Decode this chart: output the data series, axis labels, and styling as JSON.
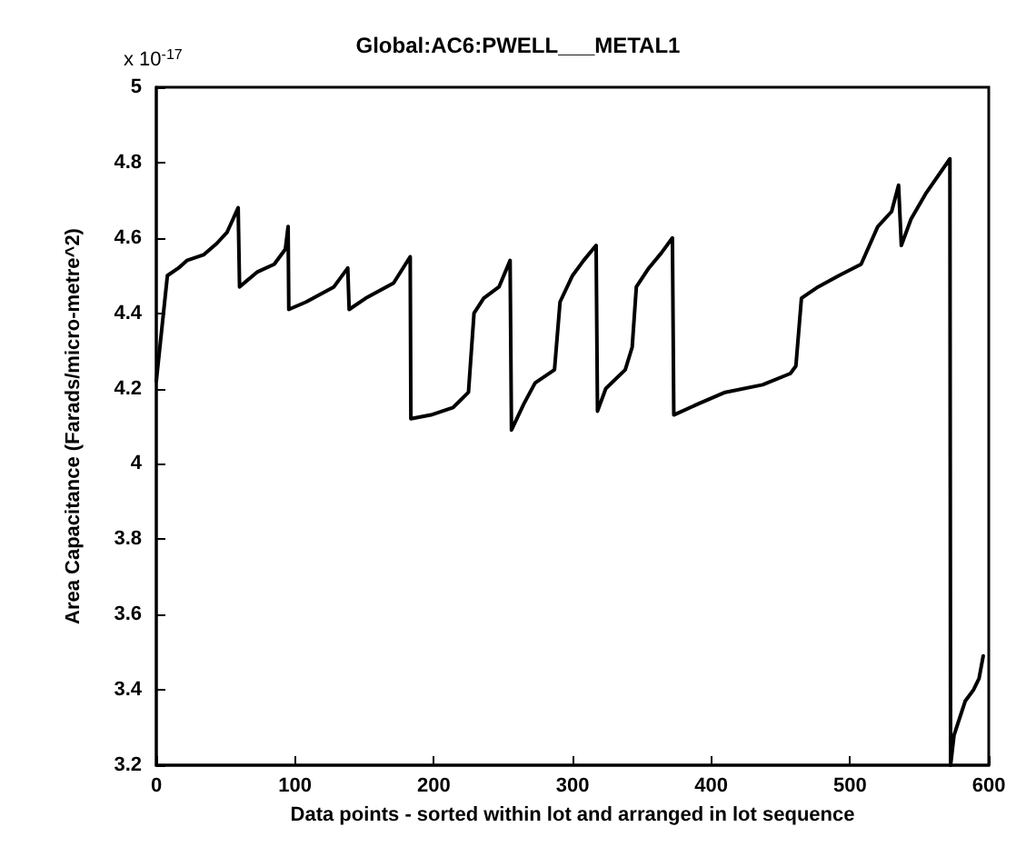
{
  "chart_data": {
    "type": "line",
    "title": "Global:AC6:PWELL___METAL1",
    "xlabel": "Data points - sorted within lot and arranged in lot sequence",
    "ylabel": "Area Capacitance (Farads/micro-metre^2)",
    "annotations": [
      "x 10$^{-17}$"
    ],
    "x": [
      0,
      8,
      16,
      22,
      34,
      43.5,
      51,
      59,
      60,
      73,
      85,
      93,
      95,
      95.5,
      108,
      128,
      138,
      139,
      151,
      171,
      183,
      183.5,
      198,
      214,
      225,
      229,
      236,
      247,
      255,
      256,
      265,
      273,
      287,
      291,
      300,
      308,
      317,
      318,
      324,
      338,
      343,
      346,
      355,
      364,
      372,
      373,
      391,
      410,
      437,
      457,
      461,
      465,
      477,
      492,
      508,
      520,
      530,
      535,
      537,
      544,
      555,
      572,
      572.5,
      575,
      583,
      589,
      593,
      596
    ],
    "series": [
      {
        "color": "#000000",
        "values": [
          4.22,
          4.5,
          4.52,
          4.54,
          4.555,
          4.585,
          4.615,
          4.68,
          4.47,
          4.51,
          4.53,
          4.57,
          4.63,
          4.41,
          4.43,
          4.47,
          4.52,
          4.41,
          4.44,
          4.48,
          4.55,
          4.12,
          4.13,
          4.15,
          4.19,
          4.4,
          4.44,
          4.47,
          4.54,
          4.09,
          4.16,
          4.215,
          4.25,
          4.43,
          4.5,
          4.54,
          4.58,
          4.14,
          4.2,
          4.25,
          4.31,
          4.47,
          4.52,
          4.56,
          4.6,
          4.13,
          4.16,
          4.19,
          4.21,
          4.24,
          4.26,
          4.44,
          4.47,
          4.5,
          4.53,
          4.63,
          4.67,
          4.74,
          4.58,
          4.65,
          4.72,
          4.81,
          3.2,
          3.28,
          3.37,
          3.4,
          3.43,
          3.49
        ]
      }
    ],
    "xlim": [
      0,
      600
    ],
    "xticks": [
      0,
      100,
      200,
      300,
      400,
      500,
      600
    ],
    "ylim": [
      3.2,
      5
    ],
    "yticks": [
      3.2,
      3.4,
      3.6,
      3.8,
      4,
      4.2,
      4.4,
      4.6,
      4.8,
      5
    ],
    "grid": false,
    "marker": "none",
    "line_style": "solid"
  }
}
